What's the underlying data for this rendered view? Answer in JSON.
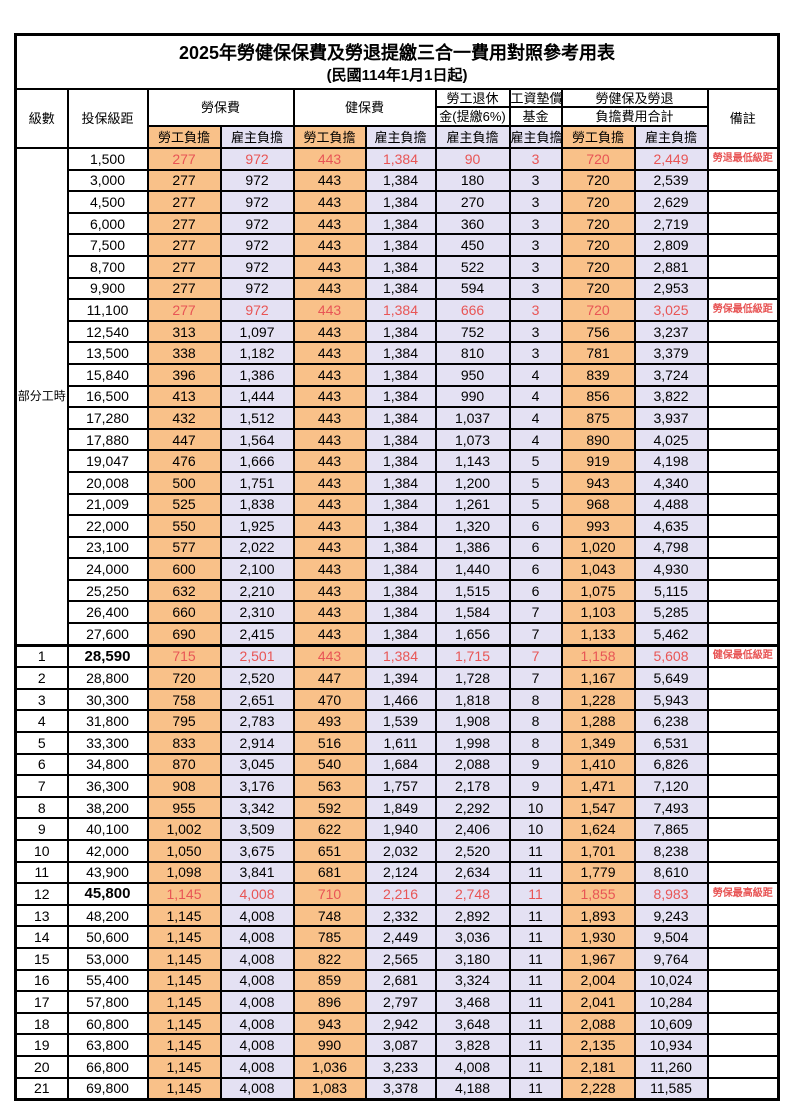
{
  "title": "2025年勞健保保費及勞退提繳三合一費用對照參考用表",
  "subtitle": "(民國114年1月1日起)",
  "colors": {
    "employee_bg": "#f9c189",
    "employer_bg": "#e4e1f3",
    "highlight_red": "#e85555",
    "border": "#000000"
  },
  "header": {
    "level": "級數",
    "bracket": "投保級距",
    "labor_ins": "勞保費",
    "health_ins": "健保費",
    "pension_line1": "勞工退休",
    "pension_line2": "金(提繳6%)",
    "wage_fund_line1": "工資墊償",
    "wage_fund_line2": "基金",
    "total_line1": "勞健保及勞退",
    "total_line2": "負擔費用合計",
    "remark": "備註",
    "employee": "勞工負擔",
    "employer": "雇主負擔"
  },
  "part_time_label": "部分工時",
  "part_time_row_span": 23,
  "value_column_names": [
    "labor-ins-employee",
    "labor-ins-employer",
    "health-ins-employee",
    "health-ins-employer",
    "pension-employer",
    "wage-fund-employer",
    "total-employee",
    "total-employer"
  ],
  "rows": [
    {
      "level": "",
      "bracket": "1,500",
      "values": [
        "277",
        "972",
        "443",
        "1,384",
        "90",
        "3",
        "720",
        "2,449"
      ],
      "remark": "勞退最低級距",
      "red": true,
      "bold": false
    },
    {
      "level": "",
      "bracket": "3,000",
      "values": [
        "277",
        "972",
        "443",
        "1,384",
        "180",
        "3",
        "720",
        "2,539"
      ],
      "remark": "",
      "red": false,
      "bold": false
    },
    {
      "level": "",
      "bracket": "4,500",
      "values": [
        "277",
        "972",
        "443",
        "1,384",
        "270",
        "3",
        "720",
        "2,629"
      ],
      "remark": "",
      "red": false,
      "bold": false
    },
    {
      "level": "",
      "bracket": "6,000",
      "values": [
        "277",
        "972",
        "443",
        "1,384",
        "360",
        "3",
        "720",
        "2,719"
      ],
      "remark": "",
      "red": false,
      "bold": false
    },
    {
      "level": "",
      "bracket": "7,500",
      "values": [
        "277",
        "972",
        "443",
        "1,384",
        "450",
        "3",
        "720",
        "2,809"
      ],
      "remark": "",
      "red": false,
      "bold": false
    },
    {
      "level": "",
      "bracket": "8,700",
      "values": [
        "277",
        "972",
        "443",
        "1,384",
        "522",
        "3",
        "720",
        "2,881"
      ],
      "remark": "",
      "red": false,
      "bold": false
    },
    {
      "level": "",
      "bracket": "9,900",
      "values": [
        "277",
        "972",
        "443",
        "1,384",
        "594",
        "3",
        "720",
        "2,953"
      ],
      "remark": "",
      "red": false,
      "bold": false
    },
    {
      "level": "",
      "bracket": "11,100",
      "values": [
        "277",
        "972",
        "443",
        "1,384",
        "666",
        "3",
        "720",
        "3,025"
      ],
      "remark": "勞保最低級距",
      "red": true,
      "bold": false
    },
    {
      "level": "",
      "bracket": "12,540",
      "values": [
        "313",
        "1,097",
        "443",
        "1,384",
        "752",
        "3",
        "756",
        "3,237"
      ],
      "remark": "",
      "red": false,
      "bold": false
    },
    {
      "level": "",
      "bracket": "13,500",
      "values": [
        "338",
        "1,182",
        "443",
        "1,384",
        "810",
        "3",
        "781",
        "3,379"
      ],
      "remark": "",
      "red": false,
      "bold": false
    },
    {
      "level": "",
      "bracket": "15,840",
      "values": [
        "396",
        "1,386",
        "443",
        "1,384",
        "950",
        "4",
        "839",
        "3,724"
      ],
      "remark": "",
      "red": false,
      "bold": false
    },
    {
      "level": "",
      "bracket": "16,500",
      "values": [
        "413",
        "1,444",
        "443",
        "1,384",
        "990",
        "4",
        "856",
        "3,822"
      ],
      "remark": "",
      "red": false,
      "bold": false
    },
    {
      "level": "",
      "bracket": "17,280",
      "values": [
        "432",
        "1,512",
        "443",
        "1,384",
        "1,037",
        "4",
        "875",
        "3,937"
      ],
      "remark": "",
      "red": false,
      "bold": false
    },
    {
      "level": "",
      "bracket": "17,880",
      "values": [
        "447",
        "1,564",
        "443",
        "1,384",
        "1,073",
        "4",
        "890",
        "4,025"
      ],
      "remark": "",
      "red": false,
      "bold": false
    },
    {
      "level": "",
      "bracket": "19,047",
      "values": [
        "476",
        "1,666",
        "443",
        "1,384",
        "1,143",
        "5",
        "919",
        "4,198"
      ],
      "remark": "",
      "red": false,
      "bold": false
    },
    {
      "level": "",
      "bracket": "20,008",
      "values": [
        "500",
        "1,751",
        "443",
        "1,384",
        "1,200",
        "5",
        "943",
        "4,340"
      ],
      "remark": "",
      "red": false,
      "bold": false
    },
    {
      "level": "",
      "bracket": "21,009",
      "values": [
        "525",
        "1,838",
        "443",
        "1,384",
        "1,261",
        "5",
        "968",
        "4,488"
      ],
      "remark": "",
      "red": false,
      "bold": false
    },
    {
      "level": "",
      "bracket": "22,000",
      "values": [
        "550",
        "1,925",
        "443",
        "1,384",
        "1,320",
        "6",
        "993",
        "4,635"
      ],
      "remark": "",
      "red": false,
      "bold": false
    },
    {
      "level": "",
      "bracket": "23,100",
      "values": [
        "577",
        "2,022",
        "443",
        "1,384",
        "1,386",
        "6",
        "1,020",
        "4,798"
      ],
      "remark": "",
      "red": false,
      "bold": false
    },
    {
      "level": "",
      "bracket": "24,000",
      "values": [
        "600",
        "2,100",
        "443",
        "1,384",
        "1,440",
        "6",
        "1,043",
        "4,930"
      ],
      "remark": "",
      "red": false,
      "bold": false
    },
    {
      "level": "",
      "bracket": "25,250",
      "values": [
        "632",
        "2,210",
        "443",
        "1,384",
        "1,515",
        "6",
        "1,075",
        "5,115"
      ],
      "remark": "",
      "red": false,
      "bold": false
    },
    {
      "level": "",
      "bracket": "26,400",
      "values": [
        "660",
        "2,310",
        "443",
        "1,384",
        "1,584",
        "7",
        "1,103",
        "5,285"
      ],
      "remark": "",
      "red": false,
      "bold": false
    },
    {
      "level": "",
      "bracket": "27,600",
      "values": [
        "690",
        "2,415",
        "443",
        "1,384",
        "1,656",
        "7",
        "1,133",
        "5,462"
      ],
      "remark": "",
      "red": false,
      "bold": false
    },
    {
      "level": "1",
      "bracket": "28,590",
      "values": [
        "715",
        "2,501",
        "443",
        "1,384",
        "1,715",
        "7",
        "1,158",
        "5,608"
      ],
      "remark": "健保最低級距",
      "red": true,
      "bold": true,
      "thickTop": true
    },
    {
      "level": "2",
      "bracket": "28,800",
      "values": [
        "720",
        "2,520",
        "447",
        "1,394",
        "1,728",
        "7",
        "1,167",
        "5,649"
      ],
      "remark": "",
      "red": false,
      "bold": false
    },
    {
      "level": "3",
      "bracket": "30,300",
      "values": [
        "758",
        "2,651",
        "470",
        "1,466",
        "1,818",
        "8",
        "1,228",
        "5,943"
      ],
      "remark": "",
      "red": false,
      "bold": false
    },
    {
      "level": "4",
      "bracket": "31,800",
      "values": [
        "795",
        "2,783",
        "493",
        "1,539",
        "1,908",
        "8",
        "1,288",
        "6,238"
      ],
      "remark": "",
      "red": false,
      "bold": false
    },
    {
      "level": "5",
      "bracket": "33,300",
      "values": [
        "833",
        "2,914",
        "516",
        "1,611",
        "1,998",
        "8",
        "1,349",
        "6,531"
      ],
      "remark": "",
      "red": false,
      "bold": false
    },
    {
      "level": "6",
      "bracket": "34,800",
      "values": [
        "870",
        "3,045",
        "540",
        "1,684",
        "2,088",
        "9",
        "1,410",
        "6,826"
      ],
      "remark": "",
      "red": false,
      "bold": false
    },
    {
      "level": "7",
      "bracket": "36,300",
      "values": [
        "908",
        "3,176",
        "563",
        "1,757",
        "2,178",
        "9",
        "1,471",
        "7,120"
      ],
      "remark": "",
      "red": false,
      "bold": false
    },
    {
      "level": "8",
      "bracket": "38,200",
      "values": [
        "955",
        "3,342",
        "592",
        "1,849",
        "2,292",
        "10",
        "1,547",
        "7,493"
      ],
      "remark": "",
      "red": false,
      "bold": false
    },
    {
      "level": "9",
      "bracket": "40,100",
      "values": [
        "1,002",
        "3,509",
        "622",
        "1,940",
        "2,406",
        "10",
        "1,624",
        "7,865"
      ],
      "remark": "",
      "red": false,
      "bold": false
    },
    {
      "level": "10",
      "bracket": "42,000",
      "values": [
        "1,050",
        "3,675",
        "651",
        "2,032",
        "2,520",
        "11",
        "1,701",
        "8,238"
      ],
      "remark": "",
      "red": false,
      "bold": false
    },
    {
      "level": "11",
      "bracket": "43,900",
      "values": [
        "1,098",
        "3,841",
        "681",
        "2,124",
        "2,634",
        "11",
        "1,779",
        "8,610"
      ],
      "remark": "",
      "red": false,
      "bold": false
    },
    {
      "level": "12",
      "bracket": "45,800",
      "values": [
        "1,145",
        "4,008",
        "710",
        "2,216",
        "2,748",
        "11",
        "1,855",
        "8,983"
      ],
      "remark": "勞保最高級距",
      "red": true,
      "bold": true
    },
    {
      "level": "13",
      "bracket": "48,200",
      "values": [
        "1,145",
        "4,008",
        "748",
        "2,332",
        "2,892",
        "11",
        "1,893",
        "9,243"
      ],
      "remark": "",
      "red": false,
      "bold": false
    },
    {
      "level": "14",
      "bracket": "50,600",
      "values": [
        "1,145",
        "4,008",
        "785",
        "2,449",
        "3,036",
        "11",
        "1,930",
        "9,504"
      ],
      "remark": "",
      "red": false,
      "bold": false
    },
    {
      "level": "15",
      "bracket": "53,000",
      "values": [
        "1,145",
        "4,008",
        "822",
        "2,565",
        "3,180",
        "11",
        "1,967",
        "9,764"
      ],
      "remark": "",
      "red": false,
      "bold": false
    },
    {
      "level": "16",
      "bracket": "55,400",
      "values": [
        "1,145",
        "4,008",
        "859",
        "2,681",
        "3,324",
        "11",
        "2,004",
        "10,024"
      ],
      "remark": "",
      "red": false,
      "bold": false
    },
    {
      "level": "17",
      "bracket": "57,800",
      "values": [
        "1,145",
        "4,008",
        "896",
        "2,797",
        "3,468",
        "11",
        "2,041",
        "10,284"
      ],
      "remark": "",
      "red": false,
      "bold": false
    },
    {
      "level": "18",
      "bracket": "60,800",
      "values": [
        "1,145",
        "4,008",
        "943",
        "2,942",
        "3,648",
        "11",
        "2,088",
        "10,609"
      ],
      "remark": "",
      "red": false,
      "bold": false
    },
    {
      "level": "19",
      "bracket": "63,800",
      "values": [
        "1,145",
        "4,008",
        "990",
        "3,087",
        "3,828",
        "11",
        "2,135",
        "10,934"
      ],
      "remark": "",
      "red": false,
      "bold": false
    },
    {
      "level": "20",
      "bracket": "66,800",
      "values": [
        "1,145",
        "4,008",
        "1,036",
        "3,233",
        "4,008",
        "11",
        "2,181",
        "11,260"
      ],
      "remark": "",
      "red": false,
      "bold": false
    },
    {
      "level": "21",
      "bracket": "69,800",
      "values": [
        "1,145",
        "4,008",
        "1,083",
        "3,378",
        "4,188",
        "11",
        "2,228",
        "11,585"
      ],
      "remark": "",
      "red": false,
      "bold": false
    }
  ]
}
